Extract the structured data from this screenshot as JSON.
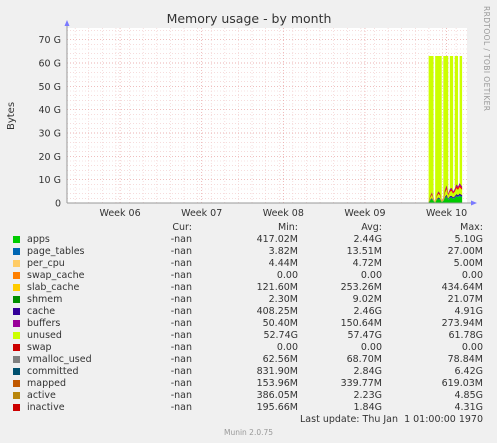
{
  "chart_data": {
    "type": "area",
    "title": "Memory usage - by month",
    "ylabel": "Bytes",
    "xlabel": "",
    "ylim": [
      0,
      75
    ],
    "y_unit": "G",
    "y_ticks": [
      "0",
      "10 G",
      "20 G",
      "30 G",
      "40 G",
      "50 G",
      "60 G",
      "70 G"
    ],
    "y_tick_values": [
      0,
      10,
      20,
      30,
      40,
      50,
      60,
      70
    ],
    "x_ticks": [
      "Week 06",
      "Week 07",
      "Week 08",
      "Week 09",
      "Week 10"
    ],
    "x_range_weeks": [
      5.35,
      10.25
    ],
    "x_tick_weeks": [
      6,
      7,
      8,
      9,
      10
    ],
    "grid": true,
    "series_colors": {
      "apps": "#00cc00",
      "page_tables": "#0066b3",
      "per_cpu": "#ff8000",
      "swap_cache": "#ffcc00",
      "slab_cache": "#330099",
      "shmem": "#990099",
      "cache": "#ccff00",
      "buffers": "#ff0000",
      "unused": "#ccff00"
    },
    "stack_segments": [
      {
        "start_week": 9.78,
        "end_week": 9.84,
        "unused_top": 63
      },
      {
        "start_week": 9.86,
        "end_week": 9.94,
        "unused_top": 63
      },
      {
        "start_week": 9.96,
        "end_week": 10.02,
        "unused_top": 63
      },
      {
        "start_week": 10.04,
        "end_week": 10.08,
        "unused_top": 63
      },
      {
        "start_week": 10.1,
        "end_week": 10.14,
        "unused_top": 63
      },
      {
        "start_week": 10.16,
        "end_week": 10.19,
        "unused_top": 63
      }
    ],
    "used_profile": [
      [
        9.78,
        0.5
      ],
      [
        9.8,
        3.0
      ],
      [
        9.82,
        4.5
      ],
      [
        9.84,
        2.0
      ],
      [
        9.86,
        0.5
      ],
      [
        9.88,
        3.5
      ],
      [
        9.9,
        5.0
      ],
      [
        9.92,
        4.0
      ],
      [
        9.94,
        1.0
      ],
      [
        9.96,
        2.0
      ],
      [
        9.98,
        5.5
      ],
      [
        10.0,
        7.5
      ],
      [
        10.02,
        4.0
      ],
      [
        10.04,
        6.0
      ],
      [
        10.06,
        6.5
      ],
      [
        10.08,
        5.0
      ],
      [
        10.1,
        6.0
      ],
      [
        10.12,
        8.0
      ],
      [
        10.14,
        7.0
      ],
      [
        10.16,
        8.5
      ],
      [
        10.18,
        7.5
      ],
      [
        10.19,
        7.0
      ]
    ]
  },
  "legend": {
    "headers": {
      "cur": "Cur:",
      "min": "Min:",
      "avg": "Avg:",
      "max": "Max:"
    },
    "rows": [
      {
        "name": "apps",
        "color": "#00cc00",
        "cur": "-nan",
        "min": "417.02M",
        "avg": "2.44G",
        "max": "5.10G"
      },
      {
        "name": "page_tables",
        "color": "#0066b3",
        "cur": "-nan",
        "min": "3.82M",
        "avg": "13.51M",
        "max": "27.00M"
      },
      {
        "name": "per_cpu",
        "color": "#ffcc66",
        "cur": "-nan",
        "min": "4.44M",
        "avg": "4.72M",
        "max": "5.00M"
      },
      {
        "name": "swap_cache",
        "color": "#ff8000",
        "cur": "-nan",
        "min": "0.00",
        "avg": "0.00",
        "max": "0.00"
      },
      {
        "name": "slab_cache",
        "color": "#ffcc00",
        "cur": "-nan",
        "min": "121.60M",
        "avg": "253.26M",
        "max": "434.64M"
      },
      {
        "name": "shmem",
        "color": "#008f00",
        "cur": "-nan",
        "min": "2.30M",
        "avg": "9.02M",
        "max": "21.07M"
      },
      {
        "name": "cache",
        "color": "#330099",
        "cur": "-nan",
        "min": "408.25M",
        "avg": "2.46G",
        "max": "4.91G"
      },
      {
        "name": "buffers",
        "color": "#990099",
        "cur": "-nan",
        "min": "50.40M",
        "avg": "150.64M",
        "max": "273.94M"
      },
      {
        "name": "unused",
        "color": "#ccff00",
        "cur": "-nan",
        "min": "52.74G",
        "avg": "57.47G",
        "max": "61.78G"
      },
      {
        "name": "swap",
        "color": "#cc0000",
        "cur": "-nan",
        "min": "0.00",
        "avg": "0.00",
        "max": "0.00"
      },
      {
        "name": "vmalloc_used",
        "color": "#808080",
        "cur": "-nan",
        "min": "62.56M",
        "avg": "68.70M",
        "max": "78.84M"
      },
      {
        "name": "committed",
        "color": "#00506e",
        "cur": "-nan",
        "min": "831.90M",
        "avg": "2.84G",
        "max": "6.42G"
      },
      {
        "name": "mapped",
        "color": "#c05800",
        "cur": "-nan",
        "min": "153.96M",
        "avg": "339.77M",
        "max": "619.03M"
      },
      {
        "name": "active",
        "color": "#b8860b",
        "cur": "-nan",
        "min": "386.05M",
        "avg": "2.23G",
        "max": "4.85G"
      },
      {
        "name": "inactive",
        "color": "#cc0000",
        "cur": "-nan",
        "min": "195.66M",
        "avg": "1.84G",
        "max": "4.31G"
      }
    ]
  },
  "footer": {
    "last_update": "Last update: Thu Jan  1 01:00:00 1970",
    "version": "Munin 2.0.75"
  },
  "side_label": "RRDTOOL / TOBI OETIKER",
  "colors": {
    "background": "#f0f0f0",
    "plot_background": "#ffffff",
    "grid_major": "#e8a0a0",
    "axis": "#999999"
  }
}
